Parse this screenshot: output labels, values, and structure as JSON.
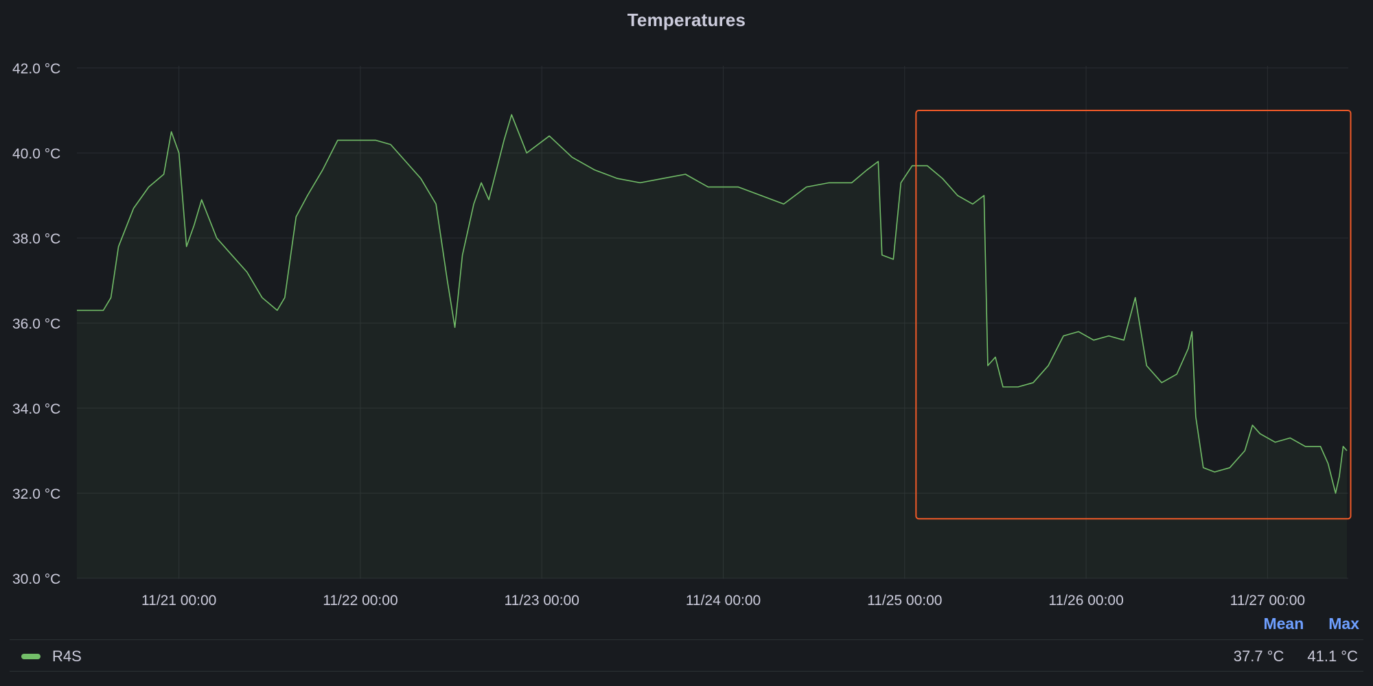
{
  "panel": {
    "title": "Temperatures"
  },
  "chart_data": {
    "type": "area",
    "title": "Temperatures",
    "x_unit": "date-time",
    "y_unit": "°C",
    "x_range": [
      "11/20 10:30",
      "11/27 10:30"
    ],
    "ylim": [
      30,
      42
    ],
    "y_ticks": [
      "30.0 °C",
      "32.0 °C",
      "34.0 °C",
      "36.0 °C",
      "38.0 °C",
      "40.0 °C",
      "42.0 °C"
    ],
    "x_ticks": [
      "11/21 00:00",
      "11/22 00:00",
      "11/23 00:00",
      "11/24 00:00",
      "11/25 00:00",
      "11/26 00:00",
      "11/27 00:00"
    ],
    "grid": true,
    "legend_placement": "bottom",
    "series": [
      {
        "name": "R4S",
        "color": "#73bf69",
        "points": [
          [
            "11/20 10:30",
            36.3
          ],
          [
            "11/20 14:00",
            36.3
          ],
          [
            "11/20 15:00",
            36.6
          ],
          [
            "11/20 16:00",
            37.8
          ],
          [
            "11/20 18:00",
            38.7
          ],
          [
            "11/20 20:00",
            39.2
          ],
          [
            "11/20 22:00",
            39.5
          ],
          [
            "11/20 23:00",
            40.5
          ],
          [
            "11/21 00:00",
            40.0
          ],
          [
            "11/21 01:00",
            37.8
          ],
          [
            "11/21 02:00",
            38.3
          ],
          [
            "11/21 03:00",
            38.9
          ],
          [
            "11/21 05:00",
            38.0
          ],
          [
            "11/21 07:00",
            37.6
          ],
          [
            "11/21 09:00",
            37.2
          ],
          [
            "11/21 11:00",
            36.6
          ],
          [
            "11/21 13:00",
            36.3
          ],
          [
            "11/21 14:00",
            36.6
          ],
          [
            "11/21 15:30",
            38.5
          ],
          [
            "11/21 17:00",
            39.0
          ],
          [
            "11/21 19:00",
            39.6
          ],
          [
            "11/21 21:00",
            40.3
          ],
          [
            "11/21 23:00",
            40.3
          ],
          [
            "11/22 02:00",
            40.3
          ],
          [
            "11/22 04:00",
            40.2
          ],
          [
            "11/22 06:00",
            39.8
          ],
          [
            "11/22 08:00",
            39.4
          ],
          [
            "11/22 10:00",
            38.8
          ],
          [
            "11/22 11:30",
            37.0
          ],
          [
            "11/22 12:30",
            35.9
          ],
          [
            "11/22 13:30",
            37.6
          ],
          [
            "11/22 15:00",
            38.8
          ],
          [
            "11/22 16:00",
            39.3
          ],
          [
            "11/22 17:00",
            38.9
          ],
          [
            "11/22 19:00",
            40.3
          ],
          [
            "11/22 20:00",
            40.9
          ],
          [
            "11/22 22:00",
            40.0
          ],
          [
            "11/23 01:00",
            40.4
          ],
          [
            "11/23 04:00",
            39.9
          ],
          [
            "11/23 07:00",
            39.6
          ],
          [
            "11/23 10:00",
            39.4
          ],
          [
            "11/23 13:00",
            39.3
          ],
          [
            "11/23 16:00",
            39.4
          ],
          [
            "11/23 19:00",
            39.5
          ],
          [
            "11/23 22:00",
            39.2
          ],
          [
            "11/24 02:00",
            39.2
          ],
          [
            "11/24 05:00",
            39.0
          ],
          [
            "11/24 08:00",
            38.8
          ],
          [
            "11/24 11:00",
            39.2
          ],
          [
            "11/24 14:00",
            39.3
          ],
          [
            "11/24 17:00",
            39.3
          ],
          [
            "11/24 19:00",
            39.6
          ],
          [
            "11/24 20:30",
            39.8
          ],
          [
            "11/24 21:00",
            37.6
          ],
          [
            "11/24 22:30",
            37.5
          ],
          [
            "11/24 23:30",
            39.3
          ],
          [
            "11/25 01:00",
            39.7
          ],
          [
            "11/25 03:00",
            39.7
          ],
          [
            "11/25 05:00",
            39.4
          ],
          [
            "11/25 07:00",
            39.0
          ],
          [
            "11/25 09:00",
            38.8
          ],
          [
            "11/25 10:30",
            39.0
          ],
          [
            "11/25 11:00",
            35.0
          ],
          [
            "11/25 12:00",
            35.2
          ],
          [
            "11/25 13:00",
            34.5
          ],
          [
            "11/25 15:00",
            34.5
          ],
          [
            "11/25 17:00",
            34.6
          ],
          [
            "11/25 19:00",
            35.0
          ],
          [
            "11/25 21:00",
            35.7
          ],
          [
            "11/25 23:00",
            35.8
          ],
          [
            "11/26 01:00",
            35.6
          ],
          [
            "11/26 03:00",
            35.7
          ],
          [
            "11/26 05:00",
            35.6
          ],
          [
            "11/26 06:30",
            36.6
          ],
          [
            "11/26 08:00",
            35.0
          ],
          [
            "11/26 10:00",
            34.6
          ],
          [
            "11/26 12:00",
            34.8
          ],
          [
            "11/26 13:30",
            35.4
          ],
          [
            "11/26 14:00",
            35.8
          ],
          [
            "11/26 14:30",
            33.8
          ],
          [
            "11/26 15:30",
            32.6
          ],
          [
            "11/26 17:00",
            32.5
          ],
          [
            "11/26 19:00",
            32.6
          ],
          [
            "11/26 21:00",
            33.0
          ],
          [
            "11/26 22:00",
            33.6
          ],
          [
            "11/26 23:00",
            33.4
          ],
          [
            "11/27 01:00",
            33.2
          ],
          [
            "11/27 03:00",
            33.3
          ],
          [
            "11/27 05:00",
            33.1
          ],
          [
            "11/27 07:00",
            33.1
          ],
          [
            "11/27 08:00",
            32.7
          ],
          [
            "11/27 09:00",
            32.0
          ],
          [
            "11/27 09:30",
            32.4
          ],
          [
            "11/27 10:00",
            33.1
          ],
          [
            "11/27 10:30",
            33.0
          ]
        ]
      }
    ],
    "annotations": [
      {
        "type": "highlight-box",
        "color": "#f05a28",
        "x_range": [
          "11/25 01:30",
          "11/27 11:00"
        ],
        "y_range": [
          31.4,
          41.0
        ]
      }
    ]
  },
  "legend": {
    "columns": [
      "Mean",
      "Max"
    ],
    "rows": [
      {
        "name": "R4S",
        "color": "#73bf69",
        "mean": "37.7 °C",
        "max": "41.1 °C"
      }
    ]
  }
}
